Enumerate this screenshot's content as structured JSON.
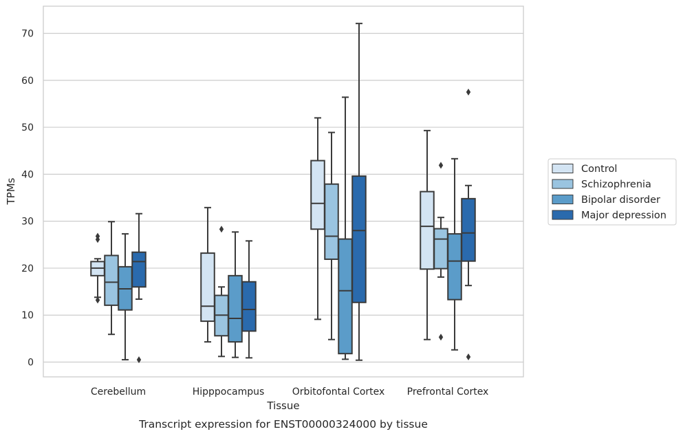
{
  "chart_data": {
    "type": "boxplot",
    "title": "",
    "caption": "Transcript expression for ENST00000324000 by tissue",
    "xlabel": "Tissue",
    "ylabel": "TPMs",
    "ylim": [
      -3,
      75.5
    ],
    "yticks": [
      0,
      10,
      20,
      30,
      40,
      50,
      60,
      70
    ],
    "grid": true,
    "legend_position": "right",
    "categories": [
      "Cerebellum",
      "Hipppocampus",
      "Orbitofontal Cortex",
      "Prefrontal Cortex"
    ],
    "series": [
      {
        "name": "Control",
        "color": "#d3e4f3",
        "boxes": [
          {
            "whislo": 13.8,
            "q1": 18.4,
            "med": 20.0,
            "q3": 21.4,
            "whishi": 22.0,
            "fliers": [
              13.2,
              26.1,
              26.8
            ]
          },
          {
            "whislo": 4.3,
            "q1": 8.7,
            "med": 11.9,
            "q3": 23.2,
            "whishi": 32.9,
            "fliers": []
          },
          {
            "whislo": 9.1,
            "q1": 28.3,
            "med": 33.8,
            "q3": 42.9,
            "whishi": 52.0,
            "fliers": []
          },
          {
            "whislo": 4.8,
            "q1": 19.8,
            "med": 28.9,
            "q3": 36.3,
            "whishi": 49.3,
            "fliers": []
          }
        ]
      },
      {
        "name": "Schizophrenia",
        "color": "#9ac4e0",
        "boxes": [
          {
            "whislo": 5.9,
            "q1": 12.1,
            "med": 17.0,
            "q3": 22.7,
            "whishi": 29.9,
            "fliers": []
          },
          {
            "whislo": 1.2,
            "q1": 5.6,
            "med": 10.0,
            "q3": 14.2,
            "whishi": 16.0,
            "fliers": [
              28.3
            ]
          },
          {
            "whislo": 4.8,
            "q1": 21.9,
            "med": 26.8,
            "q3": 37.9,
            "whishi": 48.9,
            "fliers": []
          },
          {
            "whislo": 18.1,
            "q1": 19.9,
            "med": 26.2,
            "q3": 28.4,
            "whishi": 30.8,
            "fliers": [
              5.3,
              41.9
            ]
          }
        ]
      },
      {
        "name": "Bipolar disorder",
        "color": "#5b9cc9",
        "boxes": [
          {
            "whislo": 0.5,
            "q1": 11.1,
            "med": 15.6,
            "q3": 20.3,
            "whishi": 27.3,
            "fliers": []
          },
          {
            "whislo": 1.0,
            "q1": 4.3,
            "med": 9.3,
            "q3": 18.4,
            "whishi": 27.7,
            "fliers": []
          },
          {
            "whislo": 0.6,
            "q1": 1.8,
            "med": 15.2,
            "q3": 26.2,
            "whishi": 56.4,
            "fliers": []
          },
          {
            "whislo": 2.6,
            "q1": 13.3,
            "med": 21.5,
            "q3": 27.3,
            "whishi": 43.3,
            "fliers": []
          }
        ]
      },
      {
        "name": "Major depression",
        "color": "#2a6aad",
        "boxes": [
          {
            "whislo": 13.4,
            "q1": 16.0,
            "med": 21.4,
            "q3": 23.4,
            "whishi": 31.6,
            "fliers": [
              0.5
            ]
          },
          {
            "whislo": 0.9,
            "q1": 6.6,
            "med": 11.2,
            "q3": 17.1,
            "whishi": 25.8,
            "fliers": []
          },
          {
            "whislo": 0.4,
            "q1": 12.7,
            "med": 28.0,
            "q3": 39.6,
            "whishi": 72.1,
            "fliers": []
          },
          {
            "whislo": 16.3,
            "q1": 21.5,
            "med": 27.5,
            "q3": 34.8,
            "whishi": 37.6,
            "fliers": [
              1.1,
              57.5
            ]
          }
        ]
      }
    ]
  }
}
